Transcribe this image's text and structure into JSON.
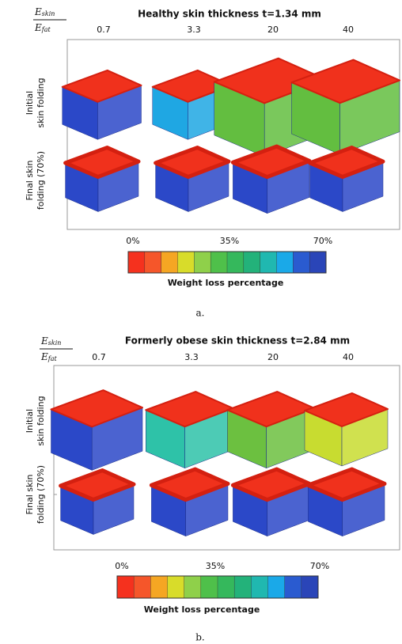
{
  "panels": [
    {
      "title": "Healthy skin thickness t=1.34 mm",
      "ratio": {
        "numerator": {
          "symbol": "E",
          "subscript": "skin"
        },
        "denominator": {
          "symbol": "E",
          "subscript": "fat"
        }
      },
      "columns": [
        "0.7",
        "3.3",
        "20",
        "40"
      ],
      "rows": [
        {
          "lines": [
            "Initial",
            "skin folding"
          ]
        },
        {
          "lines": [
            "Final skin",
            "folding (70%)"
          ]
        }
      ],
      "colorbar": {
        "ticks": [
          "0%",
          "35%",
          "70%"
        ],
        "label": "Weight loss percentage"
      },
      "caption": "a."
    },
    {
      "title": "Formerly obese skin thickness t=2.84 mm",
      "ratio": {
        "numerator": {
          "symbol": "E",
          "subscript": "skin"
        },
        "denominator": {
          "symbol": "E",
          "subscript": "fat"
        }
      },
      "columns": [
        "0.7",
        "3.3",
        "20",
        "40"
      ],
      "rows": [
        {
          "lines": [
            "Initial",
            "skin folding"
          ]
        },
        {
          "lines": [
            "Final skin",
            "folding (70%)"
          ]
        }
      ],
      "colorbar": {
        "ticks": [
          "0%",
          "35%",
          "70%"
        ],
        "label": "Weight loss percentage"
      },
      "caption": "b."
    }
  ]
}
